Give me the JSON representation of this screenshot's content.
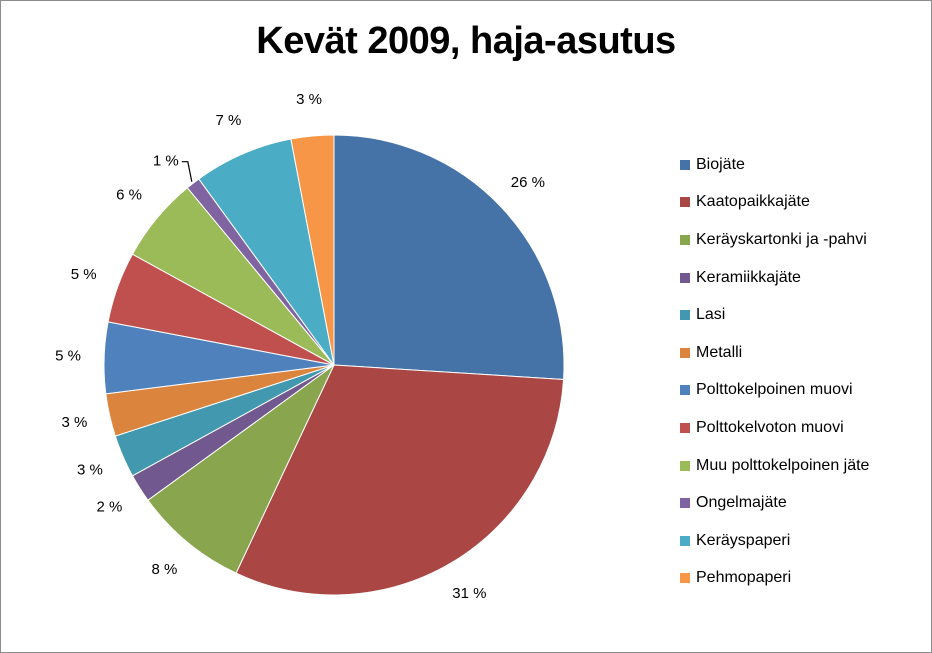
{
  "chart_data": {
    "type": "pie",
    "title": "Kevät 2009, haja-asutus",
    "legend_position": "right",
    "slices": [
      {
        "name": "Biojäte",
        "value": 26,
        "label": "26 %",
        "color": "#4572a7"
      },
      {
        "name": "Kaatopaikkajäte",
        "value": 31,
        "label": "31 %",
        "color": "#aa4643"
      },
      {
        "name": "Keräyskartonki ja -pahvi",
        "value": 8,
        "label": "8 %",
        "color": "#89a54e"
      },
      {
        "name": "Keramiikkajäte",
        "value": 2,
        "label": "2 %",
        "color": "#71588f"
      },
      {
        "name": "Lasi",
        "value": 3,
        "label": "3 %",
        "color": "#4198af"
      },
      {
        "name": "Metalli",
        "value": 3,
        "label": "3 %",
        "color": "#db843d"
      },
      {
        "name": "Polttokelpoinen muovi",
        "value": 5,
        "label": "5 %",
        "color": "#4f81bd"
      },
      {
        "name": "Polttokelvoton muovi",
        "value": 5,
        "label": "5 %",
        "color": "#c0504d"
      },
      {
        "name": "Muu polttokelpoinen jäte",
        "value": 6,
        "label": "6 %",
        "color": "#9bbb59"
      },
      {
        "name": "Ongelmajäte",
        "value": 1,
        "label": "1 %",
        "color": "#8064a2"
      },
      {
        "name": "Keräyspaperi",
        "value": 7,
        "label": "7 %",
        "color": "#4bacc6"
      },
      {
        "name": "Pehmopaperi",
        "value": 3,
        "label": "3 %",
        "color": "#f79646"
      }
    ]
  }
}
